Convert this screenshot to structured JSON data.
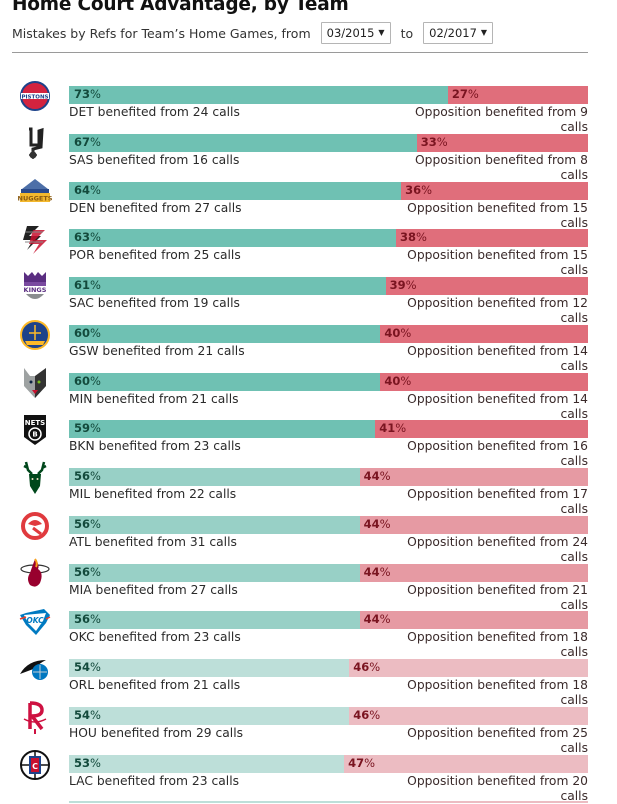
{
  "header": {
    "title": "Home Court Advantage, by Team",
    "subtitle": "Mistakes by Refs for Team’s Home Games, from",
    "from_select": "03/2015",
    "to_label": "to",
    "to_select": "02/2017",
    "caret": "▼"
  },
  "colors": {
    "home_strong": "#6fc1b3",
    "home_mid": "#98d0c6",
    "home_light": "#bddfd9",
    "opp_strong": "#e06e7b",
    "opp_mid": "#e69aa3",
    "opp_light": "#ecbcc2"
  },
  "chart_data": {
    "type": "bar",
    "stacked": true,
    "orientation": "horizontal",
    "title": "Home Court Advantage, by Team",
    "subtitle": "Mistakes by Refs for Team’s Home Games, from 03/2015 to 02/2017",
    "categories": [
      "DET",
      "SAS",
      "DEN",
      "POR",
      "SAC",
      "GSW",
      "MIN",
      "BKN",
      "MIL",
      "ATL",
      "MIA",
      "OKC",
      "ORL",
      "HOU",
      "LAC"
    ],
    "series": [
      {
        "name": "Team benefited (%)",
        "values": [
          73,
          67,
          64,
          63,
          61,
          60,
          60,
          59,
          56,
          56,
          56,
          56,
          54,
          54,
          53
        ]
      },
      {
        "name": "Opposition benefited (%)",
        "values": [
          27,
          33,
          36,
          38,
          39,
          40,
          40,
          41,
          44,
          44,
          44,
          44,
          46,
          46,
          47
        ]
      }
    ],
    "xlim": [
      0,
      100
    ],
    "rows": [
      {
        "team": "DET",
        "logo": "pistons-logo-icon",
        "home_pct": "73",
        "opp_pct": "27",
        "home_label": "DET benefited from 24 calls",
        "opp_label": "Opposition benefited from 9 calls",
        "home_calls": 24,
        "opp_calls": 9,
        "shade": "strong"
      },
      {
        "team": "SAS",
        "logo": "spurs-logo-icon",
        "home_pct": "67",
        "opp_pct": "33",
        "home_label": "SAS benefited from 16 calls",
        "opp_label": "Opposition benefited from 8 calls",
        "home_calls": 16,
        "opp_calls": 8,
        "shade": "strong"
      },
      {
        "team": "DEN",
        "logo": "nuggets-logo-icon",
        "home_pct": "64",
        "opp_pct": "36",
        "home_label": "DEN benefited from 27 calls",
        "opp_label": "Opposition benefited from 15 calls",
        "home_calls": 27,
        "opp_calls": 15,
        "shade": "strong"
      },
      {
        "team": "POR",
        "logo": "blazers-logo-icon",
        "home_pct": "63",
        "opp_pct": "38",
        "home_label": "POR benefited from 25 calls",
        "opp_label": "Opposition benefited from 15 calls",
        "home_calls": 25,
        "opp_calls": 15,
        "shade": "strong"
      },
      {
        "team": "SAC",
        "logo": "kings-logo-icon",
        "home_pct": "61",
        "opp_pct": "39",
        "home_label": "SAC benefited from 19 calls",
        "opp_label": "Opposition benefited from 12 calls",
        "home_calls": 19,
        "opp_calls": 12,
        "shade": "strong"
      },
      {
        "team": "GSW",
        "logo": "warriors-logo-icon",
        "home_pct": "60",
        "opp_pct": "40",
        "home_label": "GSW benefited from 21 calls",
        "opp_label": "Opposition benefited from 14 calls",
        "home_calls": 21,
        "opp_calls": 14,
        "shade": "strong"
      },
      {
        "team": "MIN",
        "logo": "timberwolves-logo-icon",
        "home_pct": "60",
        "opp_pct": "40",
        "home_label": "MIN benefited from 21 calls",
        "opp_label": "Opposition benefited from 14 calls",
        "home_calls": 21,
        "opp_calls": 14,
        "shade": "strong"
      },
      {
        "team": "BKN",
        "logo": "nets-logo-icon",
        "home_pct": "59",
        "opp_pct": "41",
        "home_label": "BKN benefited from 23 calls",
        "opp_label": "Opposition benefited from 16 calls",
        "home_calls": 23,
        "opp_calls": 16,
        "shade": "strong"
      },
      {
        "team": "MIL",
        "logo": "bucks-logo-icon",
        "home_pct": "56",
        "opp_pct": "44",
        "home_label": "MIL benefited from 22 calls",
        "opp_label": "Opposition benefited from 17 calls",
        "home_calls": 22,
        "opp_calls": 17,
        "shade": "mid"
      },
      {
        "team": "ATL",
        "logo": "hawks-logo-icon",
        "home_pct": "56",
        "opp_pct": "44",
        "home_label": "ATL benefited from 31 calls",
        "opp_label": "Opposition benefited from 24 calls",
        "home_calls": 31,
        "opp_calls": 24,
        "shade": "mid"
      },
      {
        "team": "MIA",
        "logo": "heat-logo-icon",
        "home_pct": "56",
        "opp_pct": "44",
        "home_label": "MIA benefited from 27 calls",
        "opp_label": "Opposition benefited from 21 calls",
        "home_calls": 27,
        "opp_calls": 21,
        "shade": "mid"
      },
      {
        "team": "OKC",
        "logo": "thunder-logo-icon",
        "home_pct": "56",
        "opp_pct": "44",
        "home_label": "OKC benefited from 23 calls",
        "opp_label": "Opposition benefited from 18 calls",
        "home_calls": 23,
        "opp_calls": 18,
        "shade": "mid"
      },
      {
        "team": "ORL",
        "logo": "magic-logo-icon",
        "home_pct": "54",
        "opp_pct": "46",
        "home_label": "ORL benefited from 21 calls",
        "opp_label": "Opposition benefited from 18 calls",
        "home_calls": 21,
        "opp_calls": 18,
        "shade": "light"
      },
      {
        "team": "HOU",
        "logo": "rockets-logo-icon",
        "home_pct": "54",
        "opp_pct": "46",
        "home_label": "HOU benefited from 29 calls",
        "opp_label": "Opposition benefited from 25 calls",
        "home_calls": 29,
        "opp_calls": 25,
        "shade": "light"
      },
      {
        "team": "LAC",
        "logo": "clippers-logo-icon",
        "home_pct": "53",
        "opp_pct": "47",
        "home_label": "LAC benefited from 23 calls",
        "opp_label": "Opposition benefited from 20 calls",
        "home_calls": 23,
        "opp_calls": 20,
        "shade": "light"
      }
    ]
  }
}
